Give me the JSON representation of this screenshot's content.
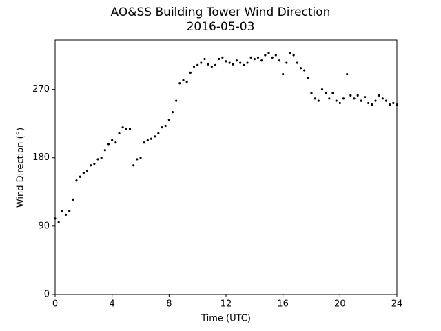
{
  "chart_data": {
    "type": "scatter",
    "title": "AO&SS Building Tower Wind Direction",
    "subtitle": "2016-05-03",
    "x_label": "Time (UTC)",
    "y_label": "Wind Direction (°)",
    "color": "#000000",
    "xlim": [
      0,
      24
    ],
    "xticks": [
      0,
      4,
      8,
      12,
      16,
      20,
      24
    ],
    "ylim": [
      0,
      335
    ],
    "yticks": [
      0,
      90,
      180,
      270
    ],
    "x": [
      0,
      0.25,
      0.5,
      0.75,
      1,
      1.25,
      1.5,
      1.75,
      2,
      2.25,
      2.5,
      2.75,
      3,
      3.25,
      3.5,
      3.75,
      4,
      4.25,
      4.5,
      4.75,
      5,
      5.25,
      5.5,
      5.75,
      6,
      6.25,
      6.5,
      6.75,
      7,
      7.25,
      7.5,
      7.75,
      8,
      8.25,
      8.5,
      8.75,
      9,
      9.25,
      9.5,
      9.75,
      10,
      10.25,
      10.5,
      10.75,
      11,
      11.25,
      11.5,
      11.75,
      12,
      12.25,
      12.5,
      12.75,
      13,
      13.25,
      13.5,
      13.75,
      14,
      14.25,
      14.5,
      14.75,
      15,
      15.25,
      15.5,
      15.75,
      16,
      16.25,
      16.5,
      16.75,
      17,
      17.25,
      17.5,
      17.75,
      18,
      18.25,
      18.5,
      18.75,
      19,
      19.25,
      19.5,
      19.75,
      20,
      20.25,
      20.5,
      20.75,
      21,
      21.25,
      21.5,
      21.75,
      22,
      22.25,
      22.5,
      22.75,
      23,
      23.25,
      23.5,
      23.75,
      24
    ],
    "values": [
      100,
      95,
      110,
      105,
      110,
      125,
      150,
      155,
      160,
      163,
      170,
      172,
      178,
      180,
      190,
      198,
      203,
      200,
      212,
      220,
      218,
      218,
      170,
      178,
      180,
      200,
      203,
      205,
      208,
      212,
      220,
      222,
      230,
      240,
      255,
      278,
      282,
      280,
      292,
      300,
      302,
      305,
      310,
      303,
      300,
      302,
      310,
      312,
      307,
      305,
      303,
      308,
      305,
      302,
      305,
      312,
      310,
      312,
      308,
      315,
      318,
      312,
      315,
      308,
      290,
      305,
      318,
      315,
      305,
      298,
      295,
      285,
      265,
      258,
      255,
      270,
      265,
      258,
      265,
      255,
      252,
      258,
      290,
      262,
      258,
      262,
      255,
      260,
      252,
      250,
      255,
      262,
      258,
      255,
      250,
      252,
      250
    ]
  }
}
